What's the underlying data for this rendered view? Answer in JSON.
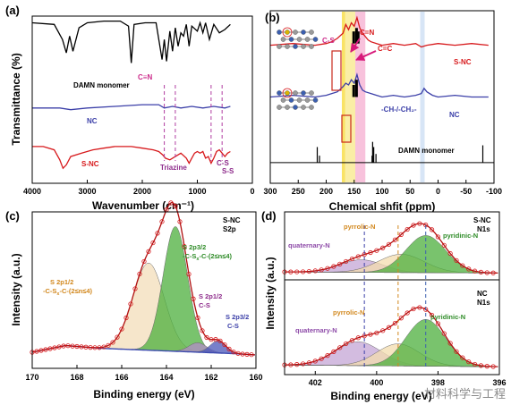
{
  "chart_data": [
    {
      "panel_label": "(a)",
      "type": "line",
      "xlabel": "Wavenumber (cm⁻¹)",
      "ylabel": "Transmittance (%)",
      "xlim": [
        4000,
        0
      ],
      "x_ticks": [
        "4000",
        "3000",
        "2000",
        "1000",
        "0"
      ],
      "series": [
        {
          "name": "DAMN monomer",
          "color": "#000000",
          "x": [
            4000,
            3600,
            3450,
            3380,
            3320,
            3260,
            3150,
            3000,
            2700,
            2400,
            2250,
            2200,
            2150,
            1950,
            1750,
            1640,
            1600,
            1560,
            1500,
            1450,
            1400,
            1350,
            1300,
            1250,
            1200,
            1150,
            1100,
            1000,
            950,
            900,
            850,
            780,
            700,
            600,
            500,
            400
          ],
          "y": [
            0.96,
            0.95,
            0.86,
            0.78,
            0.88,
            0.79,
            0.93,
            0.96,
            0.97,
            0.97,
            0.94,
            0.72,
            0.95,
            0.96,
            0.96,
            0.74,
            0.86,
            0.73,
            0.91,
            0.79,
            0.93,
            0.82,
            0.9,
            0.88,
            0.95,
            0.82,
            0.94,
            0.91,
            0.96,
            0.9,
            0.96,
            0.86,
            0.95,
            0.9,
            0.92,
            0.95
          ]
        },
        {
          "name": "NC",
          "color": "#3b3fa8",
          "x": [
            4000,
            3500,
            3300,
            3000,
            2500,
            2000,
            1700,
            1600,
            1450,
            1300,
            1100,
            900,
            700,
            500,
            400
          ],
          "y": [
            0.45,
            0.45,
            0.44,
            0.45,
            0.46,
            0.47,
            0.47,
            0.45,
            0.46,
            0.45,
            0.46,
            0.45,
            0.46,
            0.45,
            0.46
          ]
        },
        {
          "name": "S-NC",
          "color": "#d7191c",
          "x": [
            4000,
            3800,
            3600,
            3500,
            3440,
            3380,
            3300,
            3100,
            2900,
            2700,
            2500,
            2200,
            2000,
            1800,
            1700,
            1630,
            1580,
            1500,
            1400,
            1300,
            1200,
            1150,
            1100,
            1050,
            1000,
            950,
            900,
            850,
            800,
            750,
            700,
            650,
            600,
            550,
            500,
            450,
            400
          ],
          "y": [
            0.22,
            0.22,
            0.2,
            0.14,
            0.09,
            0.11,
            0.16,
            0.18,
            0.2,
            0.21,
            0.22,
            0.22,
            0.21,
            0.2,
            0.19,
            0.17,
            0.15,
            0.14,
            0.16,
            0.18,
            0.15,
            0.12,
            0.15,
            0.18,
            0.19,
            0.18,
            0.19,
            0.15,
            0.16,
            0.12,
            0.15,
            0.19,
            0.2,
            0.18,
            0.16,
            0.18,
            0.19
          ]
        }
      ],
      "annotations": [
        {
          "text": "DAMN monomer",
          "color": "#000000"
        },
        {
          "text": "C≡N",
          "color": "#cc2a8a"
        },
        {
          "text": "NC",
          "color": "#3b3fa8"
        },
        {
          "text": "S-NC",
          "color": "#d7191c"
        },
        {
          "text": "Triazine",
          "color": "#8d2a8a"
        },
        {
          "text": "C-S",
          "color": "#8d2a8a"
        },
        {
          "text": "S-S",
          "color": "#8d2a8a"
        }
      ],
      "marker_lines": [
        1600,
        1400,
        750,
        550
      ]
    },
    {
      "panel_label": "(b)",
      "type": "line",
      "xlabel": "Chemical shfit (ppm)",
      "xlim": [
        300,
        -100
      ],
      "x_ticks": [
        "300",
        "250",
        "200",
        "150",
        "100",
        "50",
        "0",
        "-50",
        "-100"
      ],
      "series": [
        {
          "name": "S-NC",
          "color": "#d7191c",
          "x": [
            300,
            260,
            220,
            200,
            190,
            180,
            170,
            165,
            160,
            155,
            150,
            145,
            140,
            135,
            130,
            125,
            120,
            110,
            100,
            80,
            60,
            40,
            30,
            20,
            0,
            -30,
            -60,
            -90
          ],
          "y": [
            0.8,
            0.81,
            0.8,
            0.81,
            0.82,
            0.84,
            0.87,
            0.92,
            0.89,
            0.93,
            0.91,
            0.96,
            0.9,
            0.87,
            0.85,
            0.83,
            0.82,
            0.81,
            0.8,
            0.81,
            0.8,
            0.81,
            0.79,
            0.8,
            0.81,
            0.8,
            0.81,
            0.8
          ]
        },
        {
          "name": "NC",
          "color": "#3b3fa8",
          "x": [
            300,
            260,
            220,
            200,
            190,
            180,
            170,
            165,
            160,
            155,
            150,
            145,
            140,
            135,
            130,
            120,
            110,
            100,
            80,
            60,
            40,
            30,
            25,
            20,
            10,
            0,
            -30,
            -60,
            -90
          ],
          "y": [
            0.5,
            0.51,
            0.5,
            0.51,
            0.52,
            0.53,
            0.56,
            0.58,
            0.57,
            0.6,
            0.58,
            0.63,
            0.57,
            0.54,
            0.53,
            0.52,
            0.51,
            0.5,
            0.51,
            0.5,
            0.51,
            0.52,
            0.55,
            0.53,
            0.51,
            0.5,
            0.51,
            0.5,
            0.5
          ]
        },
        {
          "name": "DAMN monomer",
          "color": "#000000",
          "type": "stick",
          "peaks": [
            [
              216,
              0.21
            ],
            [
              212,
              0.16
            ],
            [
              118,
              0.16
            ],
            [
              117,
              0.24
            ],
            [
              115,
              0.21
            ],
            [
              111,
              0.17
            ],
            [
              -80,
              0.22
            ]
          ]
        }
      ],
      "annotations": [
        {
          "text": "C-S",
          "color": "#cc2a8a"
        },
        {
          "text": "C=N",
          "color": "#d7191c"
        },
        {
          "text": "C=C",
          "color": "#d7191c"
        },
        {
          "text": "S-NC",
          "color": "#d7191c"
        },
        {
          "text": "-CH-/-CH₂-",
          "color": "#3b3fa8"
        },
        {
          "text": "NC",
          "color": "#3b3fa8"
        },
        {
          "text": "DAMN monomer",
          "color": "#000000"
        }
      ],
      "bands": [
        {
          "from": 172,
          "to": 166,
          "color": "#f5d000"
        },
        {
          "from": 166,
          "to": 148,
          "color": "#f7e36a"
        },
        {
          "from": 148,
          "to": 130,
          "color": "#f39ac4"
        },
        {
          "from": 32,
          "to": 24,
          "color": "#bcd3f0"
        }
      ]
    },
    {
      "panel_label": "(c)",
      "type": "area",
      "xlabel": "Binding energy (eV)",
      "ylabel": "Intensity (a.u.)",
      "xlim": [
        170,
        160
      ],
      "x_ticks": [
        "170",
        "168",
        "166",
        "164",
        "162",
        "160"
      ],
      "sample_label": "S-NC",
      "region_label": "S2p",
      "series": [
        {
          "name": "S 2p1/2 -C-Sₓ-C-(2≤n≤4)",
          "color": "#f3deb9",
          "center": 164.8,
          "height": 0.65,
          "width": 0.7
        },
        {
          "name": "S 2p3/2 -C-Sₓ-C-(2≤n≤4)",
          "color": "#4caf3c",
          "center": 163.6,
          "height": 0.93,
          "width": 0.55
        },
        {
          "name": "S 2p1/2 C-S",
          "color": "#b48bc9",
          "center": 162.6,
          "height": 0.07,
          "width": 0.4
        },
        {
          "name": "S 2p3/2 C-S",
          "color": "#4a56b8",
          "center": 161.7,
          "height": 0.09,
          "width": 0.35
        }
      ],
      "background": {
        "color": "#3d4bb0",
        "x": [
          170,
          168.5,
          167,
          165.5,
          164,
          162.5,
          161,
          160
        ],
        "y": [
          0.04,
          0.09,
          0.07,
          0.06,
          0.05,
          0.04,
          0.03,
          0.02
        ]
      },
      "raw_points": {
        "color": "#d7191c"
      }
    },
    {
      "panel_label": "(d)",
      "type": "area",
      "xlabel": "Binding energy (eV)",
      "ylabel": "Intensity (a.u.)",
      "xlim": [
        403,
        396
      ],
      "x_ticks": [
        "402",
        "400",
        "398",
        "396"
      ],
      "subplots": [
        {
          "sample_label": "S-NC",
          "region_label": "N1s",
          "series": [
            {
              "name": "quaternary-N",
              "color": "#c4a6d6",
              "center": 400.5,
              "height": 0.22,
              "width": 0.7
            },
            {
              "name": "pyrrolic-N",
              "color": "#f3dcae",
              "center": 399.2,
              "height": 0.32,
              "width": 0.75
            },
            {
              "name": "pyridinic-N",
              "color": "#4caf3c",
              "center": 398.4,
              "height": 0.65,
              "width": 0.65
            }
          ]
        },
        {
          "sample_label": "NC",
          "region_label": "N1s",
          "series": [
            {
              "name": "quaternary-N",
              "color": "#c4a6d6",
              "center": 400.6,
              "height": 0.28,
              "width": 0.75
            },
            {
              "name": "pyrrolic-N",
              "color": "#f3dcae",
              "center": 399.3,
              "height": 0.26,
              "width": 0.7
            },
            {
              "name": "pyridinic-N",
              "color": "#4caf3c",
              "center": 398.4,
              "height": 0.55,
              "width": 0.65
            }
          ]
        }
      ],
      "marker_lines": [
        400.4,
        399.3,
        398.4
      ],
      "raw_points": {
        "color": "#d7191c"
      }
    }
  ],
  "watermark": "材料科学与工程"
}
